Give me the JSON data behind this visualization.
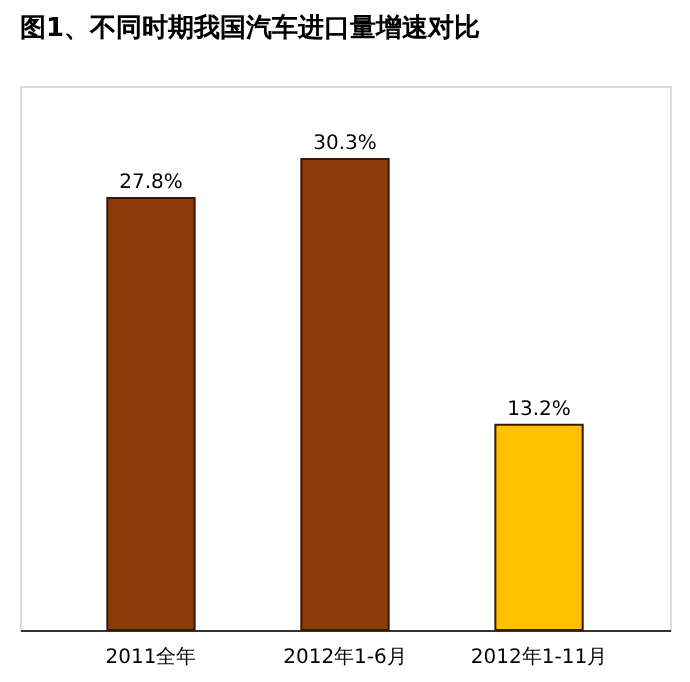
{
  "chart_data": {
    "type": "bar",
    "title": "图1、不同时期我国汽车进口量增速对比",
    "categories": [
      "2011全年",
      "2012年1-6月",
      "2012年1-11月"
    ],
    "values": [
      27.8,
      30.3,
      13.2
    ],
    "value_labels": [
      "27.8%",
      "30.3%",
      "13.2%"
    ],
    "colors": [
      "#8b3a0a",
      "#8b3a0a",
      "#ffc000"
    ],
    "grid": false,
    "legend": false
  }
}
